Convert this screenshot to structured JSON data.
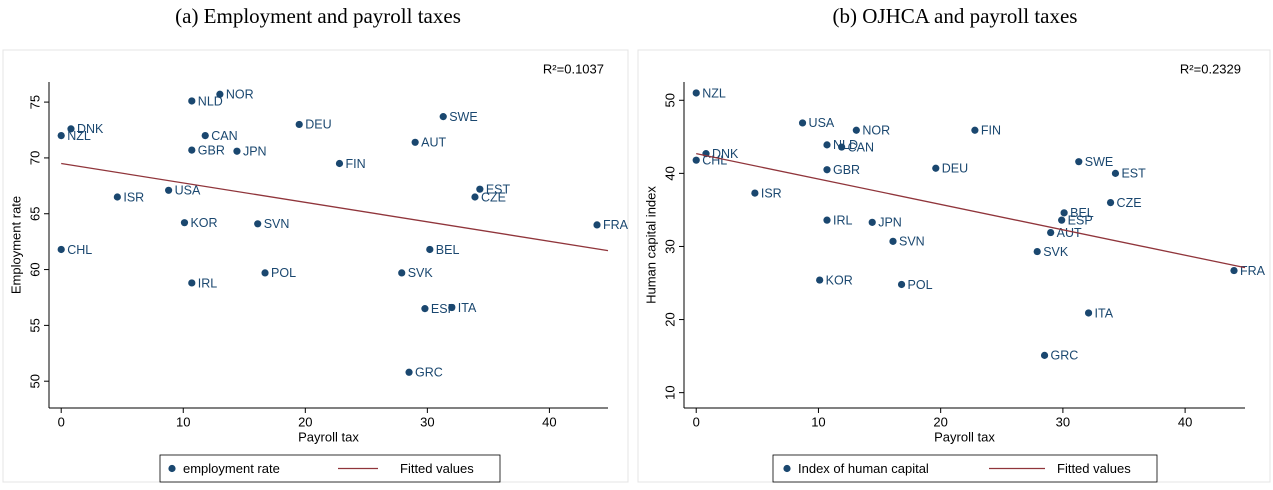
{
  "chart_data": [
    {
      "type": "scatter",
      "title": "(a) Employment and payroll taxes",
      "annotation": "R²=0.1037",
      "x_label": "Payroll tax",
      "y_label": "Employment rate",
      "xlim": [
        -1,
        44.8
      ],
      "ylim": [
        47.6,
        76.8
      ],
      "xticks": [
        0,
        10,
        20,
        30,
        40
      ],
      "yticks": [
        50,
        55,
        60,
        65,
        70,
        75
      ],
      "series": [
        {
          "name": "employment rate",
          "color": "#1a476f",
          "labels": [
            "NOR",
            "NLD",
            "DNK",
            "NZL",
            "CAN",
            "GBR",
            "JPN",
            "DEU",
            "SWE",
            "AUT",
            "FIN",
            "EST",
            "CZE",
            "ISR",
            "USA",
            "KOR",
            "SVN",
            "FRA",
            "CHL",
            "BEL",
            "POL",
            "SVK",
            "IRL",
            "ESP",
            "ITA",
            "GRC"
          ],
          "x": [
            13.0,
            10.7,
            0.8,
            0,
            11.8,
            10.7,
            14.4,
            19.5,
            31.3,
            29.0,
            22.8,
            34.3,
            33.9,
            4.6,
            8.8,
            10.1,
            16.1,
            43.9,
            0,
            30.2,
            16.7,
            27.9,
            10.7,
            29.8,
            32.0,
            28.5
          ],
          "values": [
            75.7,
            75.1,
            72.6,
            72.0,
            72.0,
            70.7,
            70.6,
            73.0,
            73.7,
            71.4,
            69.5,
            67.2,
            66.5,
            66.5,
            67.1,
            64.2,
            64.1,
            64.0,
            61.8,
            61.8,
            59.7,
            59.7,
            58.8,
            56.5,
            56.6,
            50.8
          ]
        },
        {
          "name": "Fitted values",
          "color": "#90353b",
          "x": [
            0,
            44.8
          ],
          "values": [
            69.5,
            61.7
          ]
        }
      ]
    },
    {
      "type": "scatter",
      "title": "(b) OJHCA and payroll taxes",
      "annotation": "R²=0.2329",
      "x_label": "Payroll tax",
      "y_label": "Human capital index",
      "xlim": [
        -1,
        44.9
      ],
      "ylim": [
        7.9,
        52.5
      ],
      "xticks": [
        0,
        10,
        20,
        30,
        40
      ],
      "yticks": [
        10,
        20,
        30,
        40,
        50
      ],
      "series": [
        {
          "name": "Index of human capital",
          "color": "#1a476f",
          "labels": [
            "NZL",
            "USA",
            "NOR",
            "FIN",
            "DNK",
            "NLD",
            "CAN",
            "CHL",
            "GBR",
            "DEU",
            "SWE",
            "EST",
            "ISR",
            "CZE",
            "BEL",
            "ESP",
            "IRL",
            "JPN",
            "AUT",
            "SVN",
            "SVK",
            "KOR",
            "POL",
            "FRA",
            "ITA",
            "GRC"
          ],
          "x": [
            0,
            8.7,
            13.1,
            22.8,
            0.8,
            10.7,
            11.9,
            0,
            10.7,
            19.6,
            31.3,
            34.3,
            4.8,
            33.9,
            30.1,
            29.9,
            10.7,
            14.4,
            29.0,
            16.1,
            27.9,
            10.1,
            16.8,
            44.0,
            32.1,
            28.5
          ],
          "values": [
            51.0,
            46.9,
            45.9,
            45.9,
            42.7,
            43.9,
            43.6,
            41.8,
            40.5,
            40.7,
            41.6,
            40.0,
            37.3,
            36.0,
            34.6,
            33.6,
            33.6,
            33.3,
            31.9,
            30.7,
            29.3,
            25.4,
            24.8,
            26.7,
            20.9,
            15.1
          ]
        },
        {
          "name": "Fitted values",
          "color": "#90353b",
          "x": [
            0,
            44.9
          ],
          "values": [
            42.7,
            27.1
          ]
        }
      ]
    }
  ]
}
